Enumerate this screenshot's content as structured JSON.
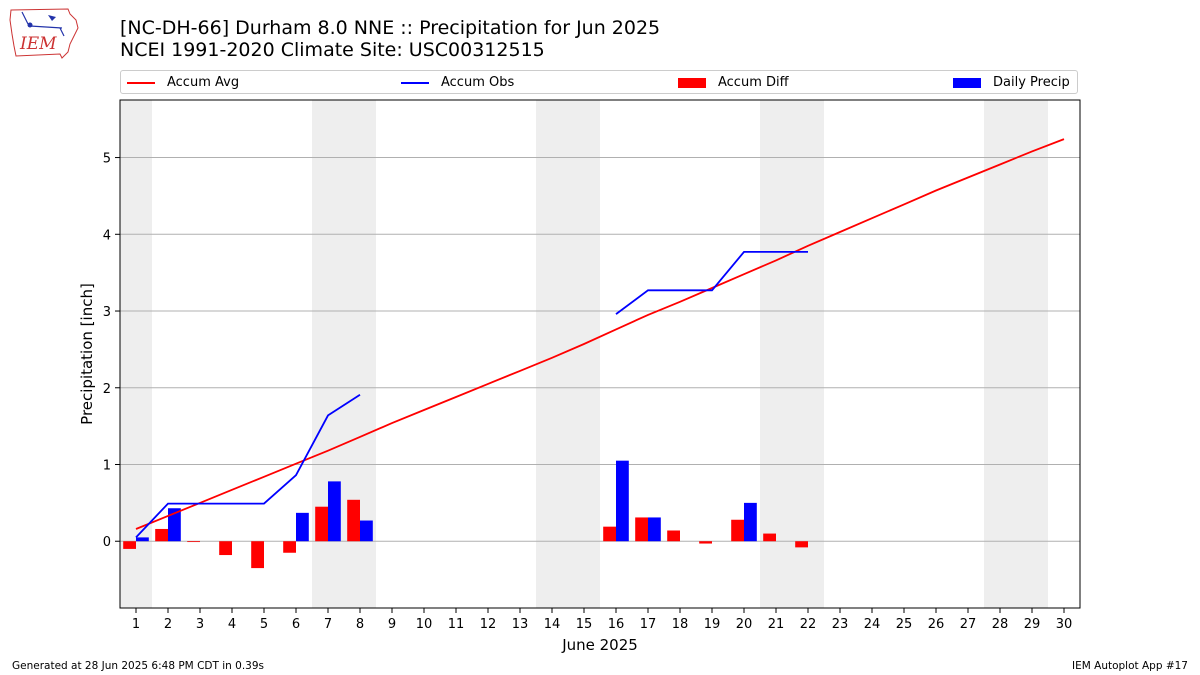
{
  "header": {
    "title": "[NC-DH-66] Durham 8.0 NNE :: Precipitation for Jun 2025",
    "subtitle": "NCEI 1991-2020 Climate Site: USC00312515",
    "logo_text": "IEM"
  },
  "footer": {
    "generated": "Generated at 28 Jun 2025 6:48 PM CDT in 0.39s",
    "app": "IEM Autoplot App #17"
  },
  "colors": {
    "accum_avg": "#ff0000",
    "accum_obs": "#0000ff",
    "accum_diff": "#ff0000",
    "daily_precip": "#0000ff",
    "weekend_shade": "#eeeeee",
    "grid": "#b0b0b0"
  },
  "chart_data": {
    "type": "bar",
    "xlabel": "June 2025",
    "ylabel": "Precipitation [inch]",
    "xlim": [
      0.5,
      30.5
    ],
    "ylim": [
      -0.87,
      5.75
    ],
    "yticks": [
      0,
      1,
      2,
      3,
      4,
      5
    ],
    "xticks": [
      1,
      2,
      3,
      4,
      5,
      6,
      7,
      8,
      9,
      10,
      11,
      12,
      13,
      14,
      15,
      16,
      17,
      18,
      19,
      20,
      21,
      22,
      23,
      24,
      25,
      26,
      27,
      28,
      29,
      30
    ],
    "grid": "horizontal",
    "legend_position": "top",
    "weekend_spans": [
      [
        0.5,
        1.5
      ],
      [
        6.5,
        8.5
      ],
      [
        13.5,
        15.5
      ],
      [
        20.5,
        22.5
      ],
      [
        27.5,
        29.5
      ]
    ],
    "series": [
      {
        "name": "Accum Avg",
        "kind": "line",
        "x": [
          1,
          2,
          3,
          4,
          5,
          6,
          7,
          8,
          9,
          10,
          11,
          12,
          13,
          14,
          15,
          16,
          17,
          18,
          19,
          20,
          21,
          22,
          23,
          24,
          25,
          26,
          27,
          28,
          29,
          30
        ],
        "values": [
          0.16,
          0.33,
          0.5,
          0.67,
          0.84,
          1.01,
          1.18,
          1.36,
          1.54,
          1.71,
          1.88,
          2.05,
          2.22,
          2.39,
          2.57,
          2.76,
          2.95,
          3.12,
          3.3,
          3.48,
          3.66,
          3.85,
          4.03,
          4.21,
          4.39,
          4.57,
          4.74,
          4.91,
          5.08,
          5.24
        ]
      },
      {
        "name": "Accum Obs",
        "kind": "line",
        "x": [
          1,
          2,
          3,
          4,
          5,
          6,
          7,
          8,
          null,
          16,
          17,
          18,
          19,
          20,
          21,
          22
        ],
        "values": [
          0.05,
          0.49,
          0.49,
          0.49,
          0.49,
          0.86,
          1.64,
          1.91,
          null,
          2.96,
          3.27,
          3.27,
          3.27,
          3.77,
          3.77,
          3.77
        ]
      },
      {
        "name": "Accum Diff",
        "kind": "bar",
        "offset": -0.2,
        "x": [
          1,
          2,
          3,
          4,
          5,
          6,
          7,
          8,
          16,
          17,
          18,
          19,
          20,
          21,
          22
        ],
        "values": [
          -0.1,
          0.16,
          -0.01,
          -0.18,
          -0.35,
          -0.15,
          0.45,
          0.54,
          0.19,
          0.31,
          0.14,
          -0.03,
          0.28,
          0.1,
          -0.08
        ]
      },
      {
        "name": "Daily Precip",
        "kind": "bar",
        "offset": 0.2,
        "x": [
          1,
          2,
          6,
          7,
          8,
          16,
          17,
          20
        ],
        "values": [
          0.05,
          0.43,
          0.37,
          0.78,
          0.27,
          1.05,
          0.31,
          0.5
        ]
      }
    ]
  }
}
